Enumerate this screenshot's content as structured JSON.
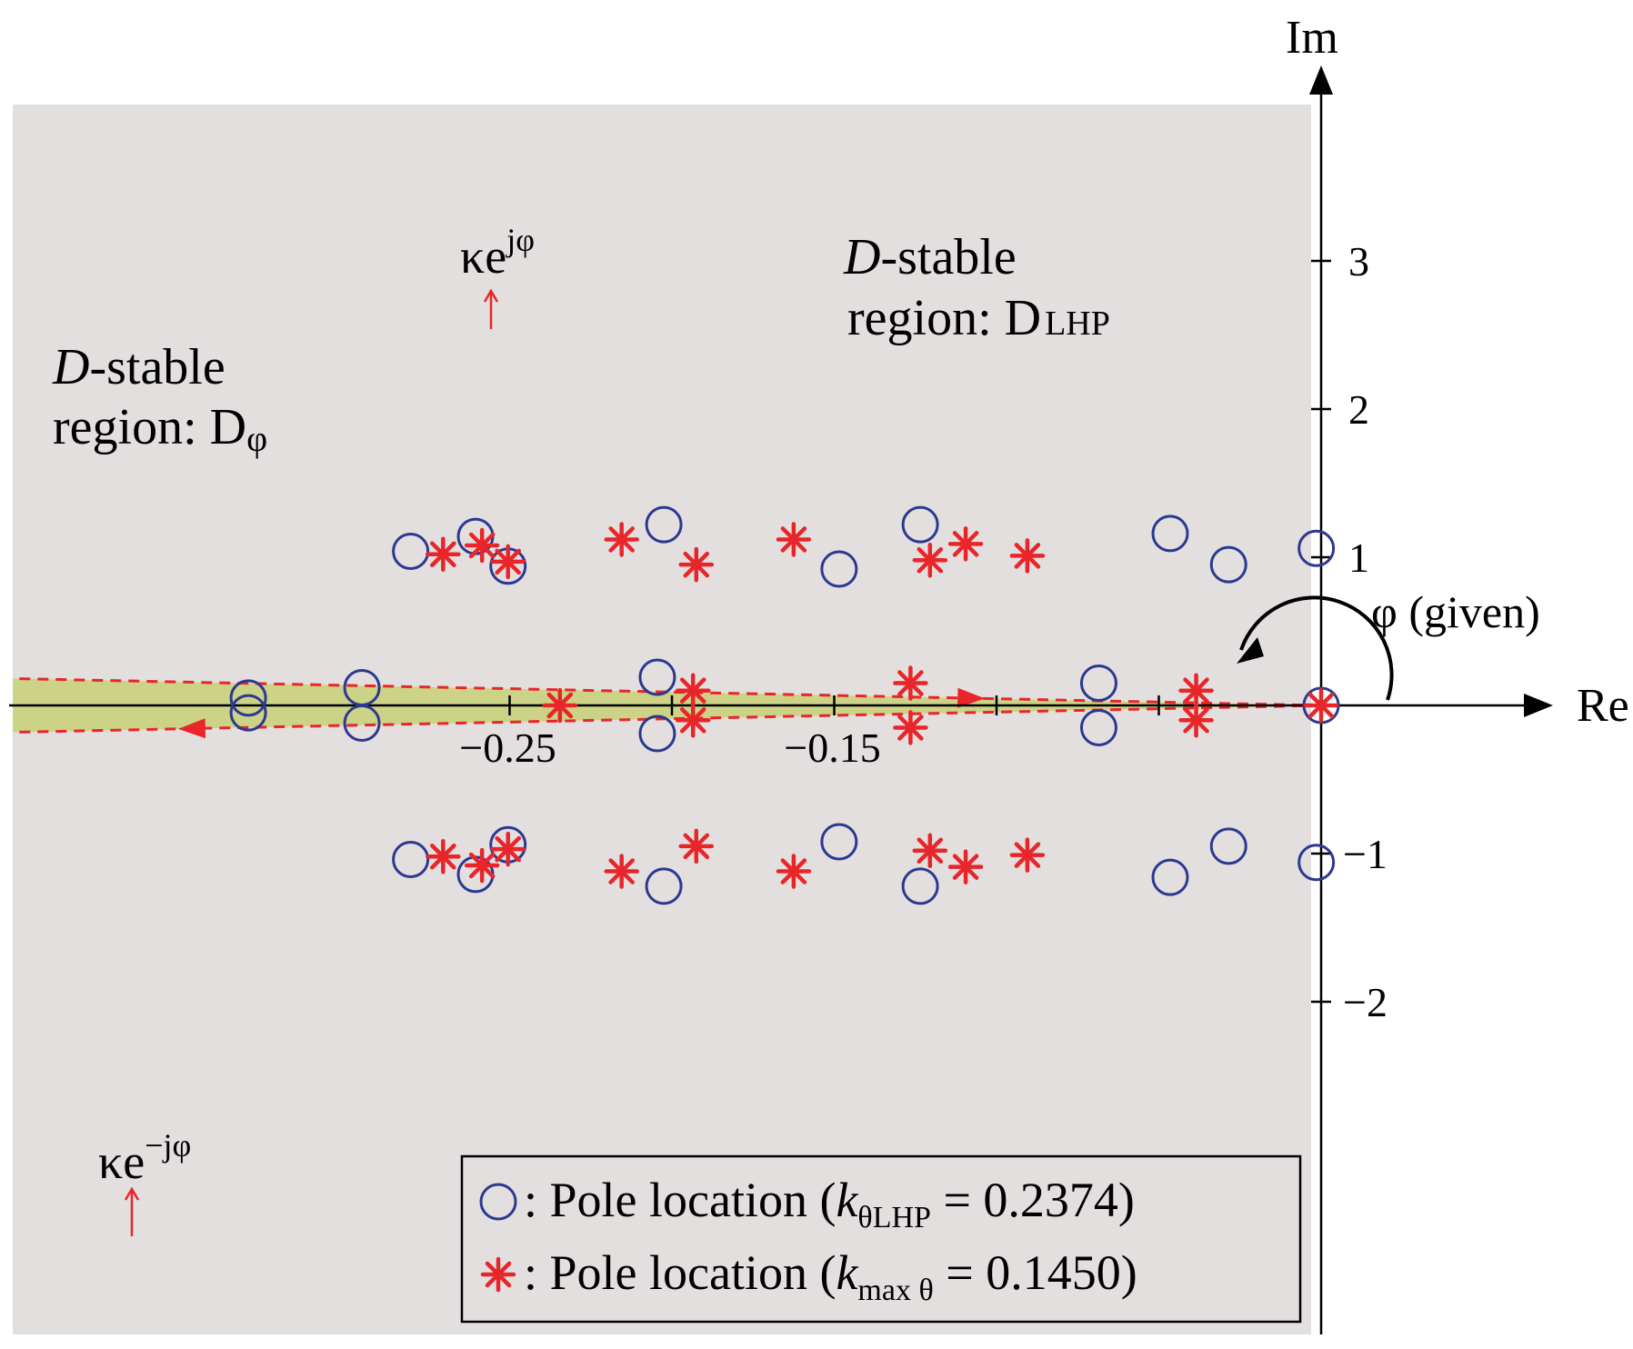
{
  "chart_data": {
    "type": "scatter",
    "title": "",
    "xlabel": "Re",
    "ylabel": "Im",
    "x_ticks": [
      {
        "value": -0.25,
        "label": "−0.25"
      },
      {
        "value": -0.15,
        "label": "−0.15"
      }
    ],
    "x_minor_ticks": [
      -0.2,
      -0.1,
      -0.05
    ],
    "y_ticks": [
      {
        "value": 3,
        "label": "3"
      },
      {
        "value": 2,
        "label": "2"
      },
      {
        "value": 1,
        "label": "1"
      },
      {
        "value": -1,
        "label": "−1"
      },
      {
        "value": -2,
        "label": "−2"
      }
    ],
    "xlim": [
      -0.352,
      0.0
    ],
    "ylim": [
      -4.3,
      4.1
    ],
    "grid": false,
    "legend_position": "bottom-right",
    "regions": [
      {
        "name": "D_LHP",
        "label_line1_italic": "D",
        "label_line1": "-stable",
        "label_line2": "region: D",
        "label_sub": "LHP",
        "color": "#e4dfdf"
      },
      {
        "name": "D_phi",
        "label_line1_italic": "D",
        "label_line1": "-stable",
        "label_line2": "region: D",
        "label_sub": "φ",
        "color": "#ccd286",
        "boundary_slope": -0.45
      }
    ],
    "boundary_labels": {
      "upper": {
        "base": "κe",
        "sup": "jφ"
      },
      "lower": {
        "base": "κe",
        "sup": "−jφ"
      }
    },
    "angle_label": "φ (given)",
    "series": [
      {
        "name": "LHP",
        "marker": "circle",
        "color": "#2b3990",
        "legend_prefix": ": Pole location (",
        "legend_k": "k",
        "legend_sub": "θLHP",
        "legend_suffix": " = 0.2374)",
        "points": [
          [
            -0.3305,
            0.05
          ],
          [
            -0.3305,
            -0.05
          ],
          [
            -0.2955,
            0.12
          ],
          [
            -0.2955,
            -0.12
          ],
          [
            -0.2805,
            1.04
          ],
          [
            -0.2805,
            -1.04
          ],
          [
            -0.2605,
            1.14
          ],
          [
            -0.2605,
            -1.14
          ],
          [
            -0.2505,
            0.94
          ],
          [
            -0.2505,
            -0.94
          ],
          [
            -0.2045,
            0.19
          ],
          [
            -0.2045,
            -0.19
          ],
          [
            -0.2025,
            1.22
          ],
          [
            -0.2025,
            -1.22
          ],
          [
            -0.1485,
            0.92
          ],
          [
            -0.1485,
            -0.92
          ],
          [
            -0.1235,
            1.22
          ],
          [
            -0.1235,
            -1.22
          ],
          [
            -0.0685,
            0.15
          ],
          [
            -0.0685,
            -0.15
          ],
          [
            -0.0465,
            1.16
          ],
          [
            -0.0465,
            -1.16
          ],
          [
            -0.0285,
            0.95
          ],
          [
            -0.0285,
            -0.95
          ],
          [
            -0.0015,
            1.06
          ],
          [
            -0.0015,
            -1.06
          ],
          [
            0.0,
            0.0
          ]
        ]
      },
      {
        "name": "max",
        "marker": "asterisk",
        "color": "#e8262a",
        "legend_prefix": ": Pole location (",
        "legend_k": "k",
        "legend_sub": "max θ",
        "legend_suffix": " = 0.1450)",
        "points": [
          [
            -0.2705,
            1.02
          ],
          [
            -0.2705,
            -1.02
          ],
          [
            -0.2585,
            1.08
          ],
          [
            -0.2585,
            -1.08
          ],
          [
            -0.2505,
            0.97
          ],
          [
            -0.2505,
            -0.97
          ],
          [
            -0.2345,
            0.0
          ],
          [
            -0.2155,
            1.12
          ],
          [
            -0.2155,
            -1.12
          ],
          [
            -0.1935,
            0.1
          ],
          [
            -0.1935,
            -0.1
          ],
          [
            -0.1925,
            0.95
          ],
          [
            -0.1925,
            -0.95
          ],
          [
            -0.1625,
            1.12
          ],
          [
            -0.1625,
            -1.12
          ],
          [
            -0.1265,
            0.15
          ],
          [
            -0.1265,
            -0.15
          ],
          [
            -0.1205,
            0.98
          ],
          [
            -0.1205,
            -0.98
          ],
          [
            -0.1095,
            1.09
          ],
          [
            -0.1095,
            -1.09
          ],
          [
            -0.0905,
            1.01
          ],
          [
            -0.0905,
            -1.01
          ],
          [
            -0.0385,
            0.1
          ],
          [
            -0.0385,
            -0.1
          ],
          [
            0.0,
            0.0
          ]
        ]
      }
    ]
  }
}
